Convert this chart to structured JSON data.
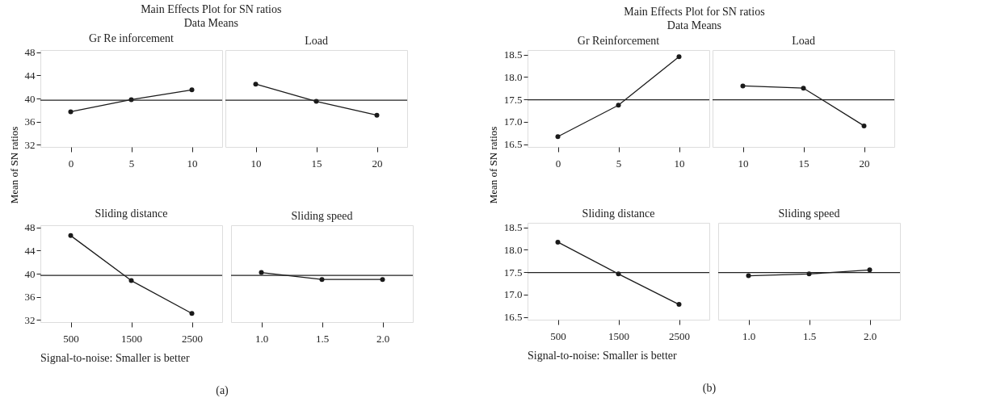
{
  "chart_data": [
    {
      "type": "line",
      "title": "Main Effects Plot for SN ratios",
      "subtitle": "Data Means",
      "xlabel": "Gr Re inforcement",
      "ylabel": "Mean of SN ratios",
      "categories": [
        "0",
        "5",
        "10"
      ],
      "series": [
        {
          "color": "#1a1a1a",
          "values": [
            37.7,
            39.8,
            41.5
          ]
        }
      ],
      "marker": "circle",
      "ylim": [
        31.6,
        48.4
      ],
      "yticks": [
        32,
        36,
        40,
        44,
        48
      ],
      "ref_lines": [
        {
          "axis": "y",
          "value": 39.7
        }
      ]
    },
    {
      "type": "line",
      "xlabel": "Load",
      "categories": [
        "10",
        "15",
        "20"
      ],
      "series": [
        {
          "color": "#1a1a1a",
          "values": [
            42.5,
            39.5,
            37.1
          ]
        }
      ],
      "marker": "circle",
      "ylim": [
        31.6,
        48.4
      ],
      "tick_labels": "x",
      "ref_lines": [
        {
          "axis": "y",
          "value": 39.7
        }
      ]
    },
    {
      "type": "line",
      "xlabel": "Sliding distance",
      "categories": [
        "500",
        "1500",
        "2500"
      ],
      "series": [
        {
          "color": "#1a1a1a",
          "values": [
            46.6,
            38.8,
            33.1
          ]
        }
      ],
      "marker": "circle",
      "ylim": [
        31.6,
        48.4
      ],
      "yticks": [
        32,
        36,
        40,
        44,
        48
      ],
      "ref_lines": [
        {
          "axis": "y",
          "value": 39.7
        }
      ],
      "annotations": [
        "Signal-to-noise: Smaller is better",
        "(a)"
      ]
    },
    {
      "type": "line",
      "xlabel": "Sliding speed",
      "categories": [
        "1.0",
        "1.5",
        "2.0"
      ],
      "series": [
        {
          "color": "#1a1a1a",
          "values": [
            40.2,
            39.0,
            39.0
          ]
        }
      ],
      "marker": "circle",
      "ylim": [
        31.6,
        48.4
      ],
      "tick_labels": "x",
      "ref_lines": [
        {
          "axis": "y",
          "value": 39.7
        }
      ]
    },
    {
      "type": "line",
      "title": "Main Effects Plot for SN ratios",
      "subtitle": "Data Means",
      "xlabel": "Gr Reinforcement",
      "ylabel": "Mean of SN ratios",
      "categories": [
        "0",
        "5",
        "10"
      ],
      "series": [
        {
          "color": "#1a1a1a",
          "values": [
            16.67,
            17.37,
            18.45
          ]
        }
      ],
      "marker": "circle",
      "ylim": [
        16.44,
        18.6
      ],
      "yticks": [
        {
          "value": 16.5,
          "label": "16.5"
        },
        {
          "value": 17,
          "label": "17.0"
        },
        {
          "value": 17.5,
          "label": "17.5"
        },
        {
          "value": 18,
          "label": "18.0"
        },
        {
          "value": 18.5,
          "label": "18.5"
        }
      ],
      "ref_lines": [
        {
          "axis": "y",
          "value": 17.49
        }
      ]
    },
    {
      "type": "line",
      "xlabel": "Load",
      "categories": [
        "10",
        "15",
        "20"
      ],
      "series": [
        {
          "color": "#1a1a1a",
          "values": [
            17.8,
            17.75,
            16.91
          ]
        }
      ],
      "marker": "circle",
      "ylim": [
        16.44,
        18.6
      ],
      "tick_labels": "x",
      "ref_lines": [
        {
          "axis": "y",
          "value": 17.49
        }
      ]
    },
    {
      "type": "line",
      "xlabel": "Sliding distance",
      "categories": [
        "500",
        "1500",
        "2500"
      ],
      "series": [
        {
          "color": "#1a1a1a",
          "values": [
            18.17,
            17.46,
            16.78
          ]
        }
      ],
      "marker": "circle",
      "ylim": [
        16.44,
        18.6
      ],
      "yticks": [
        {
          "value": 16.5,
          "label": "16.5"
        },
        {
          "value": 17,
          "label": "17.0"
        },
        {
          "value": 17.5,
          "label": "17.5"
        },
        {
          "value": 18,
          "label": "18.0"
        },
        {
          "value": 18.5,
          "label": "18.5"
        }
      ],
      "ref_lines": [
        {
          "axis": "y",
          "value": 17.49
        }
      ],
      "annotations": [
        "Signal-to-noise: Smaller is better",
        "(b)"
      ]
    },
    {
      "type": "line",
      "xlabel": "Sliding speed",
      "categories": [
        "1.0",
        "1.5",
        "2.0"
      ],
      "series": [
        {
          "color": "#1a1a1a",
          "values": [
            17.42,
            17.46,
            17.55
          ]
        }
      ],
      "marker": "circle",
      "ylim": [
        16.44,
        18.6
      ],
      "tick_labels": "x",
      "ref_lines": [
        {
          "axis": "y",
          "value": 17.49
        }
      ]
    }
  ]
}
